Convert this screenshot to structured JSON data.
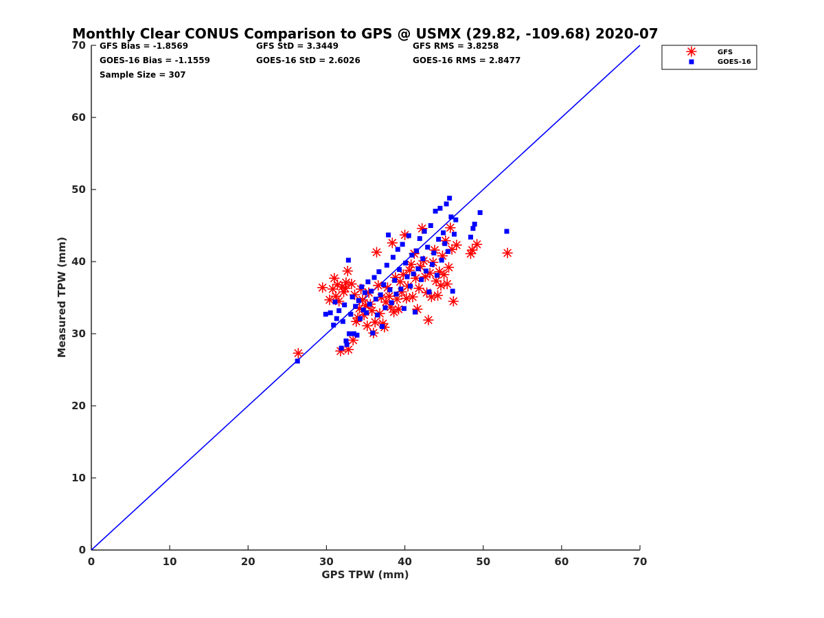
{
  "chart_data": {
    "type": "scatter",
    "title": "Monthly Clear CONUS Comparison to GPS @ USMX (29.82, -109.68) 2020-07",
    "xlabel": "GPS TPW (mm)",
    "ylabel": "Measured TPW (mm)",
    "xlim": [
      0,
      70
    ],
    "ylim": [
      0,
      70
    ],
    "xticks": [
      0,
      10,
      20,
      30,
      40,
      50,
      60,
      70
    ],
    "yticks": [
      0,
      10,
      20,
      30,
      40,
      50,
      60,
      70
    ],
    "grid": false,
    "legend_position": "top-right",
    "stats": [
      [
        "GFS Bias = -1.8569",
        "GFS StD = 3.3449",
        "GFS RMS = 3.8258"
      ],
      [
        "GOES-16 Bias = -1.1559",
        "GOES-16 StD = 2.6026",
        "GOES-16 RMS = 2.8477"
      ],
      [
        "Sample Size = 307",
        "",
        ""
      ]
    ],
    "reference_line": {
      "x": [
        0,
        70
      ],
      "y": [
        0,
        70
      ],
      "color": "#0000ff"
    },
    "series": [
      {
        "name": "GFS",
        "marker": "asterisk",
        "color": "#ff0000",
        "points": [
          [
            26.4,
            27.3
          ],
          [
            29.5,
            36.4
          ],
          [
            30.4,
            34.7
          ],
          [
            30.8,
            36.2
          ],
          [
            31.0,
            37.7
          ],
          [
            31.2,
            35.2
          ],
          [
            31.4,
            36.8
          ],
          [
            31.6,
            34.5
          ],
          [
            31.8,
            27.6
          ],
          [
            32.0,
            36.5
          ],
          [
            32.2,
            35.8
          ],
          [
            32.4,
            36.3
          ],
          [
            32.5,
            37.1
          ],
          [
            32.7,
            38.7
          ],
          [
            32.8,
            27.8
          ],
          [
            33.2,
            36.9
          ],
          [
            33.4,
            29.1
          ],
          [
            33.6,
            35.4
          ],
          [
            33.8,
            31.7
          ],
          [
            34.0,
            32.2
          ],
          [
            34.2,
            33.5
          ],
          [
            34.4,
            36.2
          ],
          [
            34.6,
            34.7
          ],
          [
            34.8,
            32.6
          ],
          [
            35.0,
            33.9
          ],
          [
            35.2,
            31.1
          ],
          [
            35.4,
            35.7
          ],
          [
            35.6,
            34.1
          ],
          [
            35.8,
            33.2
          ],
          [
            36.0,
            30.1
          ],
          [
            36.2,
            31.6
          ],
          [
            36.4,
            41.3
          ],
          [
            36.6,
            36.7
          ],
          [
            36.8,
            32.8
          ],
          [
            37.0,
            35.0
          ],
          [
            37.2,
            31.4
          ],
          [
            37.4,
            30.9
          ],
          [
            37.6,
            34.4
          ],
          [
            37.8,
            36.4
          ],
          [
            38.0,
            35.2
          ],
          [
            38.2,
            33.7
          ],
          [
            38.4,
            42.6
          ],
          [
            38.6,
            33.0
          ],
          [
            38.8,
            37.8
          ],
          [
            39.0,
            34.8
          ],
          [
            39.2,
            33.4
          ],
          [
            39.4,
            37.2
          ],
          [
            39.6,
            35.8
          ],
          [
            39.8,
            38.2
          ],
          [
            40.0,
            43.7
          ],
          [
            40.2,
            34.9
          ],
          [
            40.4,
            36.6
          ],
          [
            40.6,
            38.8
          ],
          [
            40.8,
            39.6
          ],
          [
            41.0,
            35.1
          ],
          [
            41.2,
            41.1
          ],
          [
            41.4,
            37.7
          ],
          [
            41.6,
            33.4
          ],
          [
            41.8,
            36.3
          ],
          [
            42.0,
            39.3
          ],
          [
            42.2,
            44.6
          ],
          [
            42.4,
            40.1
          ],
          [
            42.6,
            37.9
          ],
          [
            42.8,
            35.7
          ],
          [
            43.0,
            31.9
          ],
          [
            43.2,
            38.4
          ],
          [
            43.4,
            35.1
          ],
          [
            43.6,
            39.9
          ],
          [
            43.8,
            41.6
          ],
          [
            44.0,
            37.3
          ],
          [
            44.2,
            35.3
          ],
          [
            44.4,
            38.6
          ],
          [
            44.6,
            36.7
          ],
          [
            44.8,
            40.8
          ],
          [
            45.0,
            38.2
          ],
          [
            45.2,
            42.9
          ],
          [
            45.4,
            36.9
          ],
          [
            45.6,
            39.2
          ],
          [
            45.8,
            44.7
          ],
          [
            46.0,
            41.7
          ],
          [
            46.2,
            34.5
          ],
          [
            46.6,
            42.3
          ],
          [
            48.4,
            41.1
          ],
          [
            48.6,
            41.6
          ],
          [
            49.2,
            42.4
          ],
          [
            53.1,
            41.2
          ]
        ]
      },
      {
        "name": "GOES-16",
        "marker": "square",
        "color": "#0000ff",
        "points": [
          [
            26.3,
            26.2
          ],
          [
            29.9,
            32.7
          ],
          [
            30.5,
            32.9
          ],
          [
            30.9,
            31.2
          ],
          [
            31.1,
            34.4
          ],
          [
            31.3,
            32.1
          ],
          [
            31.6,
            33.2
          ],
          [
            31.9,
            28.0
          ],
          [
            32.1,
            31.7
          ],
          [
            32.3,
            34.0
          ],
          [
            32.5,
            29.0
          ],
          [
            32.6,
            28.5
          ],
          [
            32.8,
            40.2
          ],
          [
            32.9,
            30.0
          ],
          [
            33.1,
            32.7
          ],
          [
            33.3,
            35.1
          ],
          [
            33.5,
            30.0
          ],
          [
            33.7,
            33.8
          ],
          [
            33.9,
            29.8
          ],
          [
            34.1,
            34.6
          ],
          [
            34.3,
            32.1
          ],
          [
            34.5,
            36.5
          ],
          [
            34.7,
            33.3
          ],
          [
            34.9,
            35.7
          ],
          [
            35.1,
            32.9
          ],
          [
            35.3,
            37.2
          ],
          [
            35.5,
            34.1
          ],
          [
            35.7,
            35.9
          ],
          [
            35.9,
            30.1
          ],
          [
            36.1,
            37.8
          ],
          [
            36.3,
            34.8
          ],
          [
            36.5,
            32.6
          ],
          [
            36.7,
            38.6
          ],
          [
            36.9,
            35.4
          ],
          [
            37.1,
            31.0
          ],
          [
            37.3,
            36.8
          ],
          [
            37.5,
            33.6
          ],
          [
            37.7,
            39.5
          ],
          [
            37.9,
            43.7
          ],
          [
            38.1,
            36.1
          ],
          [
            38.3,
            34.3
          ],
          [
            38.5,
            40.6
          ],
          [
            38.7,
            37.4
          ],
          [
            38.9,
            35.5
          ],
          [
            39.1,
            41.7
          ],
          [
            39.3,
            38.9
          ],
          [
            39.5,
            36.2
          ],
          [
            39.7,
            42.4
          ],
          [
            39.9,
            33.5
          ],
          [
            40.1,
            39.8
          ],
          [
            40.3,
            37.9
          ],
          [
            40.5,
            43.6
          ],
          [
            40.7,
            36.6
          ],
          [
            40.9,
            40.9
          ],
          [
            41.1,
            38.3
          ],
          [
            41.3,
            33.0
          ],
          [
            41.5,
            41.5
          ],
          [
            41.7,
            39.0
          ],
          [
            41.9,
            43.2
          ],
          [
            42.1,
            37.5
          ],
          [
            42.3,
            40.4
          ],
          [
            42.5,
            44.2
          ],
          [
            42.7,
            38.7
          ],
          [
            42.9,
            42.0
          ],
          [
            43.1,
            35.8
          ],
          [
            43.3,
            45.0
          ],
          [
            43.5,
            39.6
          ],
          [
            43.7,
            41.2
          ],
          [
            43.9,
            47.0
          ],
          [
            44.1,
            38.1
          ],
          [
            44.3,
            43.1
          ],
          [
            44.5,
            47.4
          ],
          [
            44.7,
            40.2
          ],
          [
            44.9,
            44.0
          ],
          [
            45.1,
            42.5
          ],
          [
            45.3,
            48.0
          ],
          [
            45.5,
            41.4
          ],
          [
            45.7,
            48.8
          ],
          [
            45.9,
            46.2
          ],
          [
            46.1,
            35.9
          ],
          [
            46.3,
            43.8
          ],
          [
            46.5,
            45.8
          ],
          [
            48.4,
            43.4
          ],
          [
            48.7,
            44.6
          ],
          [
            48.9,
            45.2
          ],
          [
            49.6,
            46.8
          ],
          [
            53.0,
            44.2
          ]
        ]
      }
    ]
  }
}
